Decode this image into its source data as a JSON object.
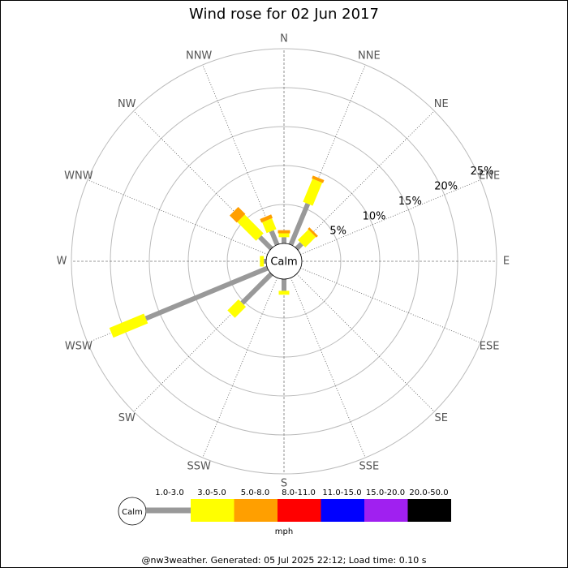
{
  "chart_data": {
    "type": "windrose",
    "title": "Wind rose for 02 Jun 2017",
    "categories": [
      "N",
      "NNE",
      "NE",
      "ENE",
      "E",
      "ESE",
      "SE",
      "SSE",
      "S",
      "SSW",
      "SW",
      "WSW",
      "W",
      "WNW",
      "NW",
      "NNW"
    ],
    "series": [
      {
        "name": "1.0-3.0",
        "color": "#999999",
        "values": [
          0.8,
          5.7,
          0.9,
          0,
          0,
          0,
          0,
          0,
          1.5,
          0,
          5.3,
          16.9,
          0.3,
          0,
          2.1,
          1.9
        ]
      },
      {
        "name": "3.0-5.0",
        "color": "#ffff00",
        "values": [
          0.5,
          3.2,
          1.9,
          0,
          0,
          0,
          0,
          0,
          0.5,
          0,
          2.0,
          4.8,
          0.5,
          0,
          3.4,
          1.5
        ]
      },
      {
        "name": "5.0-8.0",
        "color": "#ff9f00",
        "values": [
          0.4,
          0.4,
          0.3,
          0,
          0,
          0,
          0,
          0,
          0,
          0,
          0,
          0,
          0,
          0,
          1.3,
          0.5
        ]
      },
      {
        "name": "8.0-11.0",
        "color": "#ff0000",
        "values": [
          0,
          0,
          0,
          0,
          0,
          0,
          0,
          0,
          0,
          0,
          0,
          0,
          0,
          0,
          0,
          0
        ]
      },
      {
        "name": "11.0-15.0",
        "color": "#0000ff",
        "values": [
          0,
          0,
          0,
          0,
          0,
          0,
          0,
          0,
          0,
          0,
          0,
          0,
          0,
          0,
          0,
          0
        ]
      },
      {
        "name": "15.0-20.0",
        "color": "#a020f0",
        "values": [
          0,
          0,
          0,
          0,
          0,
          0,
          0,
          0,
          0,
          0,
          0,
          0,
          0,
          0,
          0,
          0
        ]
      },
      {
        "name": "20.0-50.0",
        "color": "#000000",
        "values": [
          0,
          0,
          0,
          0,
          0,
          0,
          0,
          0,
          0,
          0,
          0,
          0,
          0,
          0,
          0,
          0
        ]
      }
    ],
    "ylim": [
      0,
      25
    ],
    "yticks": [
      {
        "value": 5,
        "label": "5%"
      },
      {
        "value": 10,
        "label": "10%"
      },
      {
        "value": 15,
        "label": "15%"
      },
      {
        "value": 20,
        "label": "20%"
      },
      {
        "value": 25,
        "label": "25%"
      }
    ],
    "calm_label": "Calm",
    "legend_unit": "mph",
    "footer": "@nw3weather. Generated: 05 Jul 2025 22:12; Load time: 0.10 s"
  }
}
